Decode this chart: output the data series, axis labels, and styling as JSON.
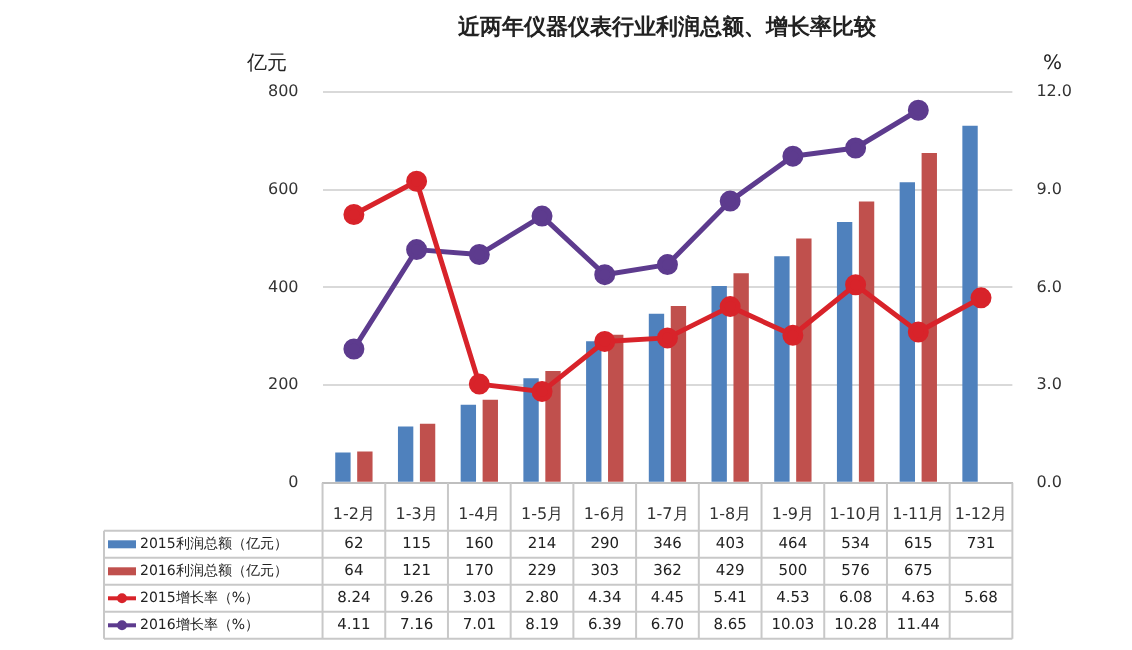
{
  "chart_data": {
    "type": "bar",
    "title": "近两年仪器仪表行业利润总额、增长率比较",
    "ylabel": "亿元",
    "y2label": "%",
    "categories": [
      "1-2月",
      "1-3月",
      "1-4月",
      "1-5月",
      "1-6月",
      "1-7月",
      "1-8月",
      "1-9月",
      "1-10月",
      "1-11月",
      "1-12月"
    ],
    "series": [
      {
        "name": "2015利润总额（亿元）",
        "color": "#4f81bd",
        "values": [
          62,
          115,
          160,
          214,
          290,
          346,
          403,
          464,
          534,
          615,
          731
        ],
        "value_labels": [
          "62",
          "115",
          "160",
          "214",
          "290",
          "346",
          "403",
          "464",
          "534",
          "615",
          "731"
        ]
      },
      {
        "name": "2016利润总额（亿元）",
        "color": "#c0504d",
        "values": [
          64,
          121,
          170,
          229,
          303,
          362,
          429,
          500,
          576,
          675,
          null
        ],
        "value_labels": [
          "64",
          "121",
          "170",
          "229",
          "303",
          "362",
          "429",
          "500",
          "576",
          "675",
          null
        ]
      },
      {
        "name": "2015增长率（%）",
        "type": "line",
        "axis": "y2",
        "color": "#d8232a",
        "values": [
          8.24,
          9.26,
          3.03,
          2.8,
          4.34,
          4.45,
          5.41,
          4.53,
          6.08,
          4.63,
          5.68
        ],
        "value_labels": [
          "8.24",
          "9.26",
          "3.03",
          "2.80",
          "4.34",
          "4.45",
          "5.41",
          "4.53",
          "6.08",
          "4.63",
          "5.68"
        ]
      },
      {
        "name": "2016增长率（%）",
        "type": "line",
        "axis": "y2",
        "color": "#5d3b8e",
        "values": [
          4.11,
          7.16,
          7.01,
          8.19,
          6.39,
          6.7,
          8.65,
          10.03,
          10.28,
          11.44,
          null
        ],
        "value_labels": [
          "4.11",
          "7.16",
          "7.01",
          "8.19",
          "6.39",
          "6.70",
          "8.65",
          "10.03",
          "10.28",
          "11.44",
          null
        ]
      }
    ],
    "ylim": [
      0,
      800
    ],
    "yticks": [
      0,
      200,
      400,
      600,
      800
    ],
    "y2lim": [
      0,
      12
    ],
    "y2ticks": [
      {
        "value": 0,
        "label": "0.0"
      },
      {
        "value": 3,
        "label": "3.0"
      },
      {
        "value": 6,
        "label": "6.0"
      },
      {
        "value": 9,
        "label": "9.0"
      },
      {
        "value": 12,
        "label": "12.0"
      }
    ],
    "grid": "y",
    "marker": "circle",
    "line_style": "solid",
    "legend": "bottom"
  }
}
